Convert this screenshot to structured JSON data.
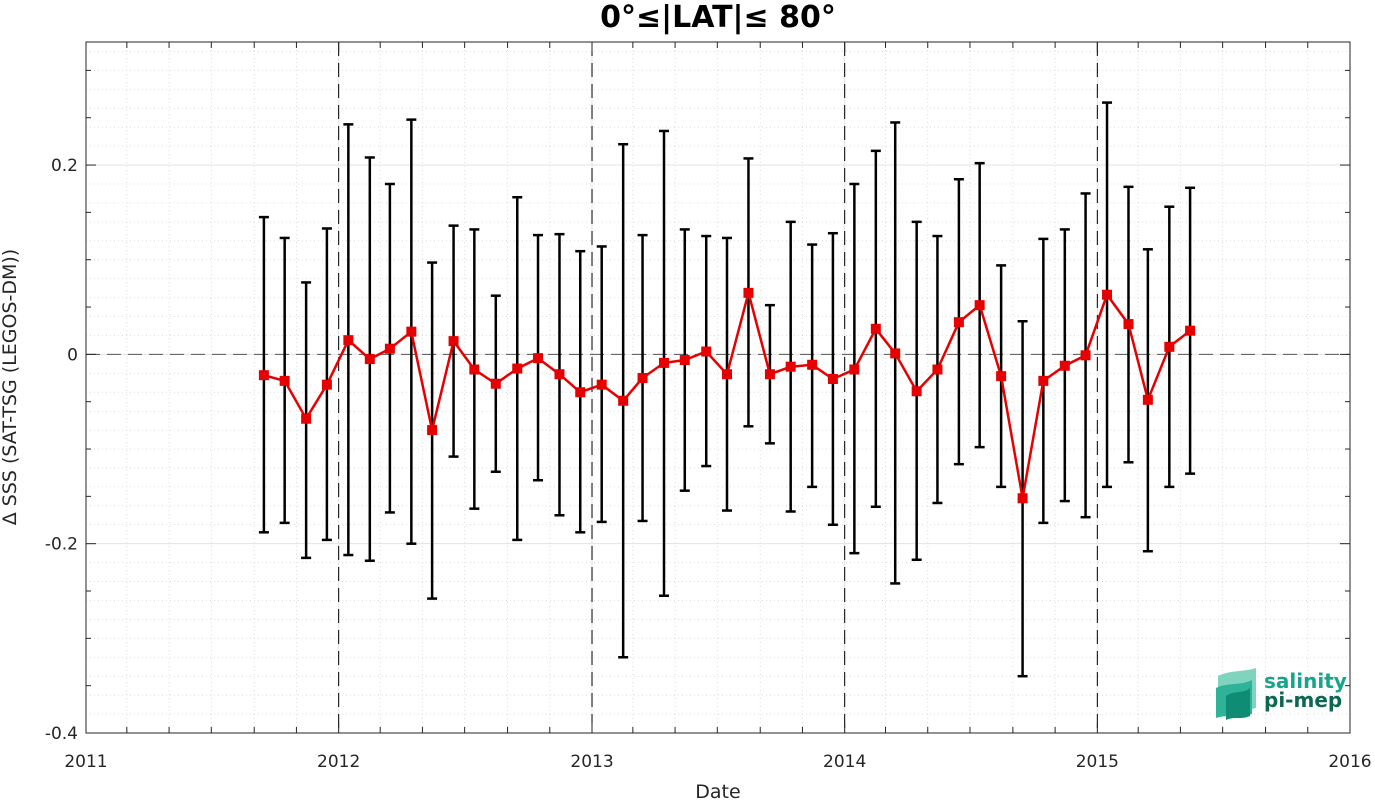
{
  "chart_data": {
    "type": "line",
    "title": "0°≤|LAT|≤ 80°",
    "xlabel": "Date",
    "ylabel": "Δ SSS (SAT-TSG (LEGOS-DM))",
    "xlim": [
      "2011-01-01",
      "2016-01-01"
    ],
    "ylim": [
      -0.4,
      0.33
    ],
    "x_ticks": [
      "2011",
      "2012",
      "2013",
      "2014",
      "2015",
      "2016"
    ],
    "y_ticks": [
      0.2,
      0,
      -0.2,
      -0.4
    ],
    "y_tick_labels": [
      "0.2",
      "0",
      "-0.2",
      "-0.4"
    ],
    "grid": true,
    "zero_line": 0,
    "year_markers": [
      "2012-01-01",
      "2013-01-01",
      "2014-01-01",
      "2015-01-01"
    ],
    "series": [
      {
        "color": "#e60000",
        "marker": "square",
        "error_bar_color": "#000000",
        "points": [
          {
            "date": "2011-09-15",
            "y": -0.022,
            "lo": -0.188,
            "hi": 0.145
          },
          {
            "date": "2011-10-15",
            "y": -0.028,
            "lo": -0.178,
            "hi": 0.123
          },
          {
            "date": "2011-11-15",
            "y": -0.068,
            "lo": -0.215,
            "hi": 0.076
          },
          {
            "date": "2011-12-15",
            "y": -0.032,
            "lo": -0.196,
            "hi": 0.133
          },
          {
            "date": "2012-01-15",
            "y": 0.015,
            "lo": -0.212,
            "hi": 0.243
          },
          {
            "date": "2012-02-15",
            "y": -0.005,
            "lo": -0.218,
            "hi": 0.208
          },
          {
            "date": "2012-03-15",
            "y": 0.006,
            "lo": -0.167,
            "hi": 0.18
          },
          {
            "date": "2012-04-15",
            "y": 0.024,
            "lo": -0.2,
            "hi": 0.248
          },
          {
            "date": "2012-05-15",
            "y": -0.08,
            "lo": -0.258,
            "hi": 0.097
          },
          {
            "date": "2012-06-15",
            "y": 0.014,
            "lo": -0.108,
            "hi": 0.136
          },
          {
            "date": "2012-07-15",
            "y": -0.016,
            "lo": -0.163,
            "hi": 0.132
          },
          {
            "date": "2012-08-15",
            "y": -0.031,
            "lo": -0.124,
            "hi": 0.062
          },
          {
            "date": "2012-09-15",
            "y": -0.015,
            "lo": -0.196,
            "hi": 0.166
          },
          {
            "date": "2012-10-15",
            "y": -0.004,
            "lo": -0.133,
            "hi": 0.126
          },
          {
            "date": "2012-11-15",
            "y": -0.021,
            "lo": -0.17,
            "hi": 0.127
          },
          {
            "date": "2012-12-15",
            "y": -0.04,
            "lo": -0.188,
            "hi": 0.109
          },
          {
            "date": "2013-01-15",
            "y": -0.032,
            "lo": -0.177,
            "hi": 0.114
          },
          {
            "date": "2013-02-15",
            "y": -0.049,
            "lo": -0.32,
            "hi": 0.222
          },
          {
            "date": "2013-03-15",
            "y": -0.025,
            "lo": -0.176,
            "hi": 0.126
          },
          {
            "date": "2013-04-15",
            "y": -0.009,
            "lo": -0.255,
            "hi": 0.236
          },
          {
            "date": "2013-05-15",
            "y": -0.006,
            "lo": -0.144,
            "hi": 0.132
          },
          {
            "date": "2013-06-15",
            "y": 0.003,
            "lo": -0.118,
            "hi": 0.125
          },
          {
            "date": "2013-07-15",
            "y": -0.021,
            "lo": -0.165,
            "hi": 0.123
          },
          {
            "date": "2013-08-15",
            "y": 0.065,
            "lo": -0.076,
            "hi": 0.207
          },
          {
            "date": "2013-09-15",
            "y": -0.021,
            "lo": -0.094,
            "hi": 0.052
          },
          {
            "date": "2013-10-15",
            "y": -0.013,
            "lo": -0.166,
            "hi": 0.14
          },
          {
            "date": "2013-11-15",
            "y": -0.011,
            "lo": -0.14,
            "hi": 0.116
          },
          {
            "date": "2013-12-15",
            "y": -0.026,
            "lo": -0.18,
            "hi": 0.128
          },
          {
            "date": "2014-01-15",
            "y": -0.016,
            "lo": -0.21,
            "hi": 0.18
          },
          {
            "date": "2014-02-15",
            "y": 0.027,
            "lo": -0.161,
            "hi": 0.215
          },
          {
            "date": "2014-03-15",
            "y": 0.001,
            "lo": -0.242,
            "hi": 0.245
          },
          {
            "date": "2014-04-15",
            "y": -0.039,
            "lo": -0.217,
            "hi": 0.14
          },
          {
            "date": "2014-05-15",
            "y": -0.016,
            "lo": -0.157,
            "hi": 0.125
          },
          {
            "date": "2014-06-15",
            "y": 0.034,
            "lo": -0.116,
            "hi": 0.185
          },
          {
            "date": "2014-07-15",
            "y": 0.052,
            "lo": -0.098,
            "hi": 0.202
          },
          {
            "date": "2014-08-15",
            "y": -0.023,
            "lo": -0.14,
            "hi": 0.094
          },
          {
            "date": "2014-09-15",
            "y": -0.152,
            "lo": -0.34,
            "hi": 0.035
          },
          {
            "date": "2014-10-15",
            "y": -0.028,
            "lo": -0.178,
            "hi": 0.122
          },
          {
            "date": "2014-11-15",
            "y": -0.012,
            "lo": -0.155,
            "hi": 0.132
          },
          {
            "date": "2014-12-15",
            "y": -0.001,
            "lo": -0.172,
            "hi": 0.17
          },
          {
            "date": "2015-01-15",
            "y": 0.063,
            "lo": -0.14,
            "hi": 0.266
          },
          {
            "date": "2015-02-15",
            "y": 0.032,
            "lo": -0.114,
            "hi": 0.177
          },
          {
            "date": "2015-03-15",
            "y": -0.048,
            "lo": -0.208,
            "hi": 0.111
          },
          {
            "date": "2015-04-15",
            "y": 0.008,
            "lo": -0.14,
            "hi": 0.156
          },
          {
            "date": "2015-05-15",
            "y": 0.025,
            "lo": -0.126,
            "hi": 0.176
          }
        ]
      }
    ]
  },
  "logo": {
    "line1": "salinity",
    "line2": "pi-mep",
    "color1": "#17a589",
    "color2": "#0e6655"
  }
}
